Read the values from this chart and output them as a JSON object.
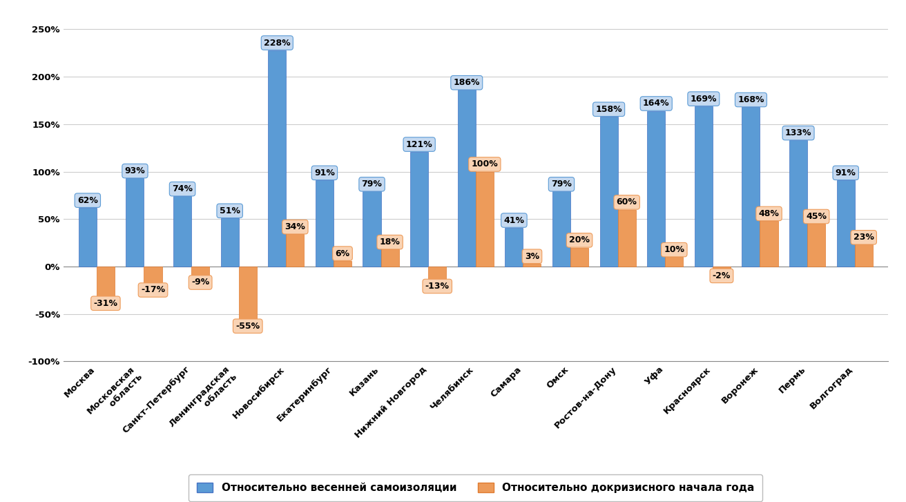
{
  "categories": [
    "Москва",
    "Московская\n область",
    "Санкт-Петербург",
    "Ленинградская\n область",
    "Новосибирск",
    "Екатеринбург",
    "Казань",
    "Нижний Новгород",
    "Челябинск",
    "Самара",
    "Омск",
    "Ростов-на-Дону",
    "Уфа",
    "Красноярск",
    "Воронеж",
    "Пермь",
    "Волгоград"
  ],
  "blue_values": [
    62,
    93,
    74,
    51,
    228,
    91,
    79,
    121,
    186,
    41,
    79,
    158,
    164,
    169,
    168,
    133,
    91
  ],
  "orange_values": [
    -31,
    -17,
    -9,
    -55,
    34,
    6,
    18,
    -13,
    100,
    3,
    20,
    60,
    10,
    -2,
    48,
    45,
    23
  ],
  "blue_color": "#5B9BD5",
  "blue_label_bg": "#C5D9F0",
  "orange_color": "#ED9B5A",
  "orange_label_bg": "#F9D3B4",
  "blue_label": "Относительно весенней самоизоляции",
  "orange_label": "Относительно докризисного начала года",
  "ylim_min": -100,
  "ylim_max": 265,
  "yticks": [
    -100,
    -50,
    0,
    50,
    100,
    150,
    200,
    250
  ],
  "ytick_labels": [
    "-100%",
    "-50%",
    "0%",
    "50%",
    "100%",
    "150%",
    "200%",
    "250%"
  ],
  "background_color": "#FFFFFF",
  "grid_color": "#CCCCCC",
  "bar_width": 0.38,
  "label_fontsize": 9,
  "tick_fontsize": 9.5,
  "legend_fontsize": 11
}
